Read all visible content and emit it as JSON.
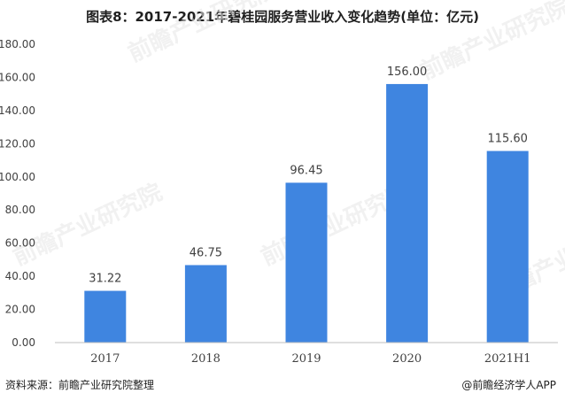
{
  "title": "图表8：2017-2021年碧桂园服务营业收入变化趋势(单位：亿元)",
  "footer": {
    "source": "资料来源：前瞻产业研究院整理",
    "brand": "@前瞻经济学人APP"
  },
  "watermark": "前瞻产业研究院",
  "colors": {
    "bar": "#3f85e0",
    "axis": "#bfbfbf",
    "text": "#404040"
  },
  "chart_data": {
    "type": "bar",
    "categories": [
      "2017",
      "2018",
      "2019",
      "2020",
      "2021H1"
    ],
    "values": [
      31.22,
      46.75,
      96.45,
      156.0,
      115.6
    ],
    "data_labels": [
      "31.22",
      "46.75",
      "96.45",
      "156.00",
      "115.60"
    ],
    "y_ticks": [
      "0.00",
      "20.00",
      "40.00",
      "60.00",
      "80.00",
      "100.00",
      "120.00",
      "140.00",
      "160.00",
      "180.00"
    ],
    "ylim": [
      0,
      180
    ],
    "grid": false,
    "xlabel": "",
    "ylabel": ""
  }
}
